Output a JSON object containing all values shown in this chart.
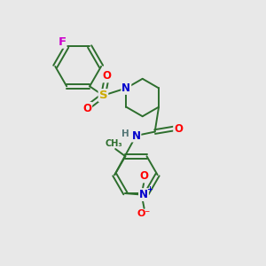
{
  "background_color": "#e8e8e8",
  "bond_color": "#2d6e2d",
  "atom_colors": {
    "F": "#cc00cc",
    "O": "#ff0000",
    "N": "#0000cc",
    "S": "#ccaa00",
    "H": "#557777"
  },
  "figsize": [
    3.0,
    3.0
  ],
  "dpi": 100,
  "lw": 1.4,
  "fs": 8.5
}
